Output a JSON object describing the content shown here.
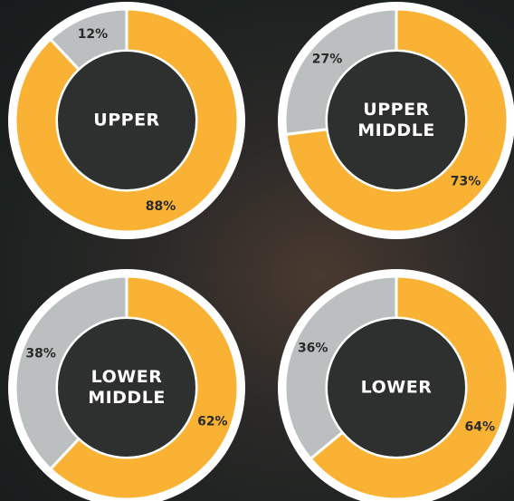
{
  "chart_data": [
    {
      "type": "donut",
      "title": "UPPER",
      "values": [
        88,
        12
      ],
      "value_labels": [
        "88%",
        "12%"
      ],
      "colors": [
        "#f9b233",
        "#bcbfc0"
      ]
    },
    {
      "type": "donut",
      "title": "UPPER MIDDLE",
      "values": [
        73,
        27
      ],
      "value_labels": [
        "73%",
        "27%"
      ],
      "colors": [
        "#f9b233",
        "#bcbfc0"
      ]
    },
    {
      "type": "donut",
      "title": "LOWER MIDDLE",
      "values": [
        62,
        38
      ],
      "value_labels": [
        "62%",
        "38%"
      ],
      "colors": [
        "#f9b233",
        "#bcbfc0"
      ]
    },
    {
      "type": "donut",
      "title": "LOWER",
      "values": [
        64,
        36
      ],
      "value_labels": [
        "64%",
        "36%"
      ],
      "colors": [
        "#f9b233",
        "#bcbfc0"
      ]
    }
  ]
}
